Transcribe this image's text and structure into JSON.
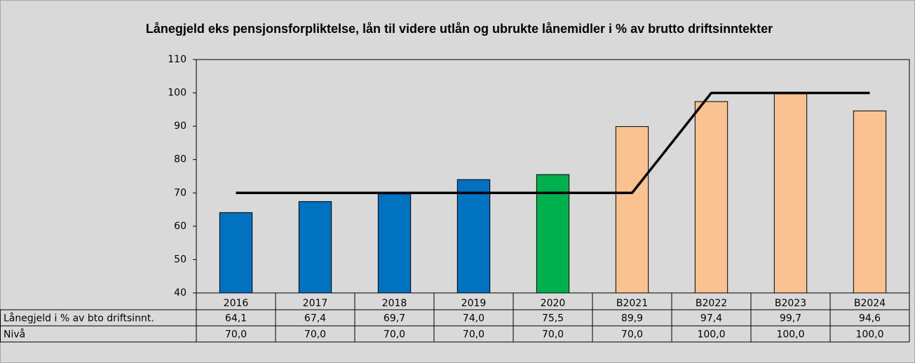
{
  "chart_data": {
    "type": "bar",
    "title": "Lånegjeld eks pensjonsforpliktelse, lån til videre utlån og ubrukte lånemidler i % av brutto driftsinntekter",
    "categories": [
      "2016",
      "2017",
      "2018",
      "2019",
      "2020",
      "B2021",
      "B2022",
      "B2023",
      "B2024"
    ],
    "series": [
      {
        "name": "Lånegjeld i % av bto driftsinnt.",
        "type": "bar",
        "colors": [
          "#0070c0",
          "#0070c0",
          "#0070c0",
          "#0070c0",
          "#00b050",
          "#f8c291",
          "#f8c291",
          "#f8c291",
          "#f8c291"
        ],
        "values": [
          64.1,
          67.4,
          69.7,
          74.0,
          75.5,
          89.9,
          97.4,
          99.7,
          94.6
        ],
        "value_labels": [
          "64,1",
          "67,4",
          "69,7",
          "74,0",
          "75,5",
          "89,9",
          "97,4",
          "99,7",
          "94,6"
        ]
      },
      {
        "name": "Nivå",
        "type": "line",
        "color": "#000000",
        "values": [
          70,
          70,
          70,
          70,
          70,
          70,
          100,
          100,
          100
        ],
        "value_labels": [
          "70,0",
          "70,0",
          "70,0",
          "70,0",
          "70,0",
          "70,0",
          "100,0",
          "100,0",
          "100,0"
        ]
      }
    ],
    "ylim": [
      40,
      110
    ],
    "yticks": [
      40,
      50,
      60,
      70,
      80,
      90,
      100,
      110
    ],
    "grid": false,
    "data_table": true
  }
}
